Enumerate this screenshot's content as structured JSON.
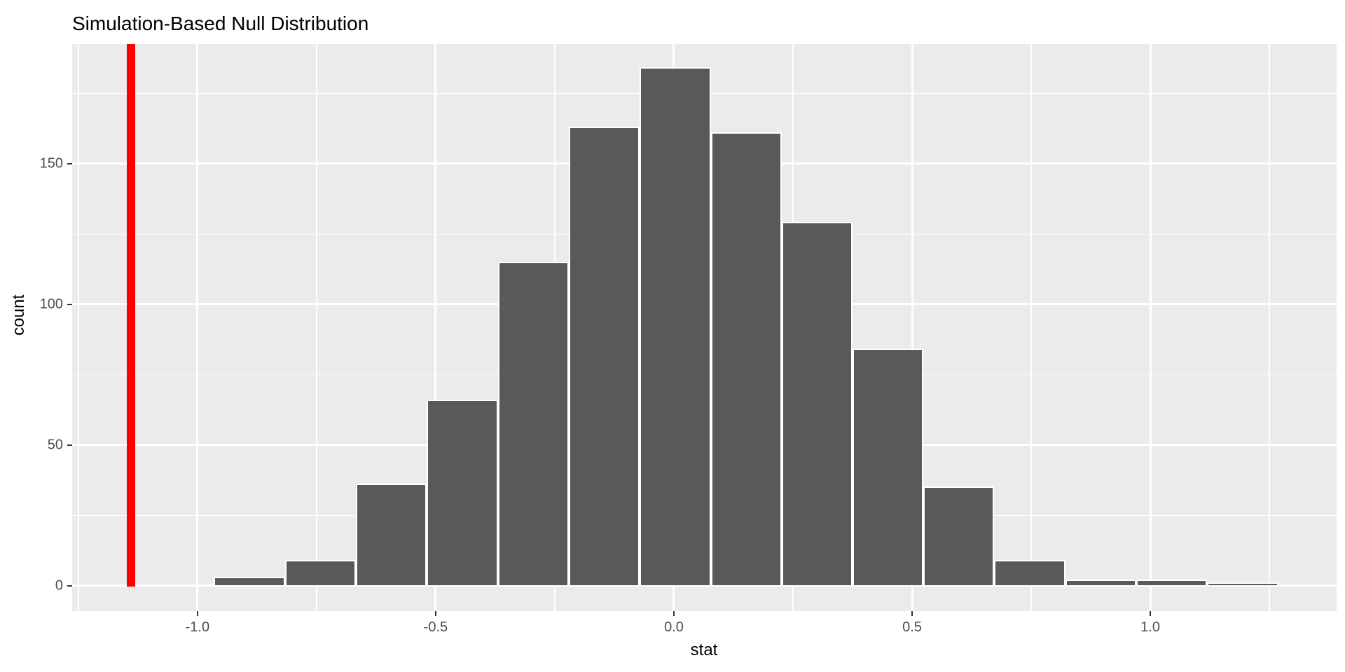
{
  "chart_data": {
    "type": "bar",
    "subtype": "histogram",
    "title": "Simulation-Based Null Distribution",
    "xlabel": "stat",
    "ylabel": "count",
    "bin_width": 0.149,
    "bin_centers": [
      -0.891,
      -0.742,
      -0.593,
      -0.444,
      -0.295,
      -0.146,
      0.003,
      0.152,
      0.301,
      0.449,
      0.598,
      0.747,
      0.896,
      1.045,
      1.194
    ],
    "counts": [
      3,
      9,
      36,
      66,
      115,
      163,
      184,
      161,
      129,
      84,
      35,
      9,
      2,
      2,
      1
    ],
    "x_ticks": [
      -1.0,
      -0.5,
      0.0,
      0.5,
      1.0
    ],
    "x_tick_labels": [
      "-1.0",
      "-0.5",
      "0.0",
      "0.5",
      "1.0"
    ],
    "y_ticks": [
      0,
      50,
      100,
      150
    ],
    "y_tick_labels": [
      "0",
      "50",
      "100",
      "150"
    ],
    "x_range": [
      -1.263,
      1.391
    ],
    "y_range": [
      -9,
      192.5
    ],
    "observed_stat": -1.14,
    "observed_line_width_units": 0.018,
    "legend": "none",
    "grid": "on",
    "colors": {
      "bar_fill": "#595959",
      "bar_border": "#FFFFFF",
      "panel_bg": "#EBEBEB",
      "gridline": "#FFFFFF",
      "observed_line": "#FF0000",
      "tick_label": "#4D4D4D",
      "text": "#000000"
    }
  }
}
